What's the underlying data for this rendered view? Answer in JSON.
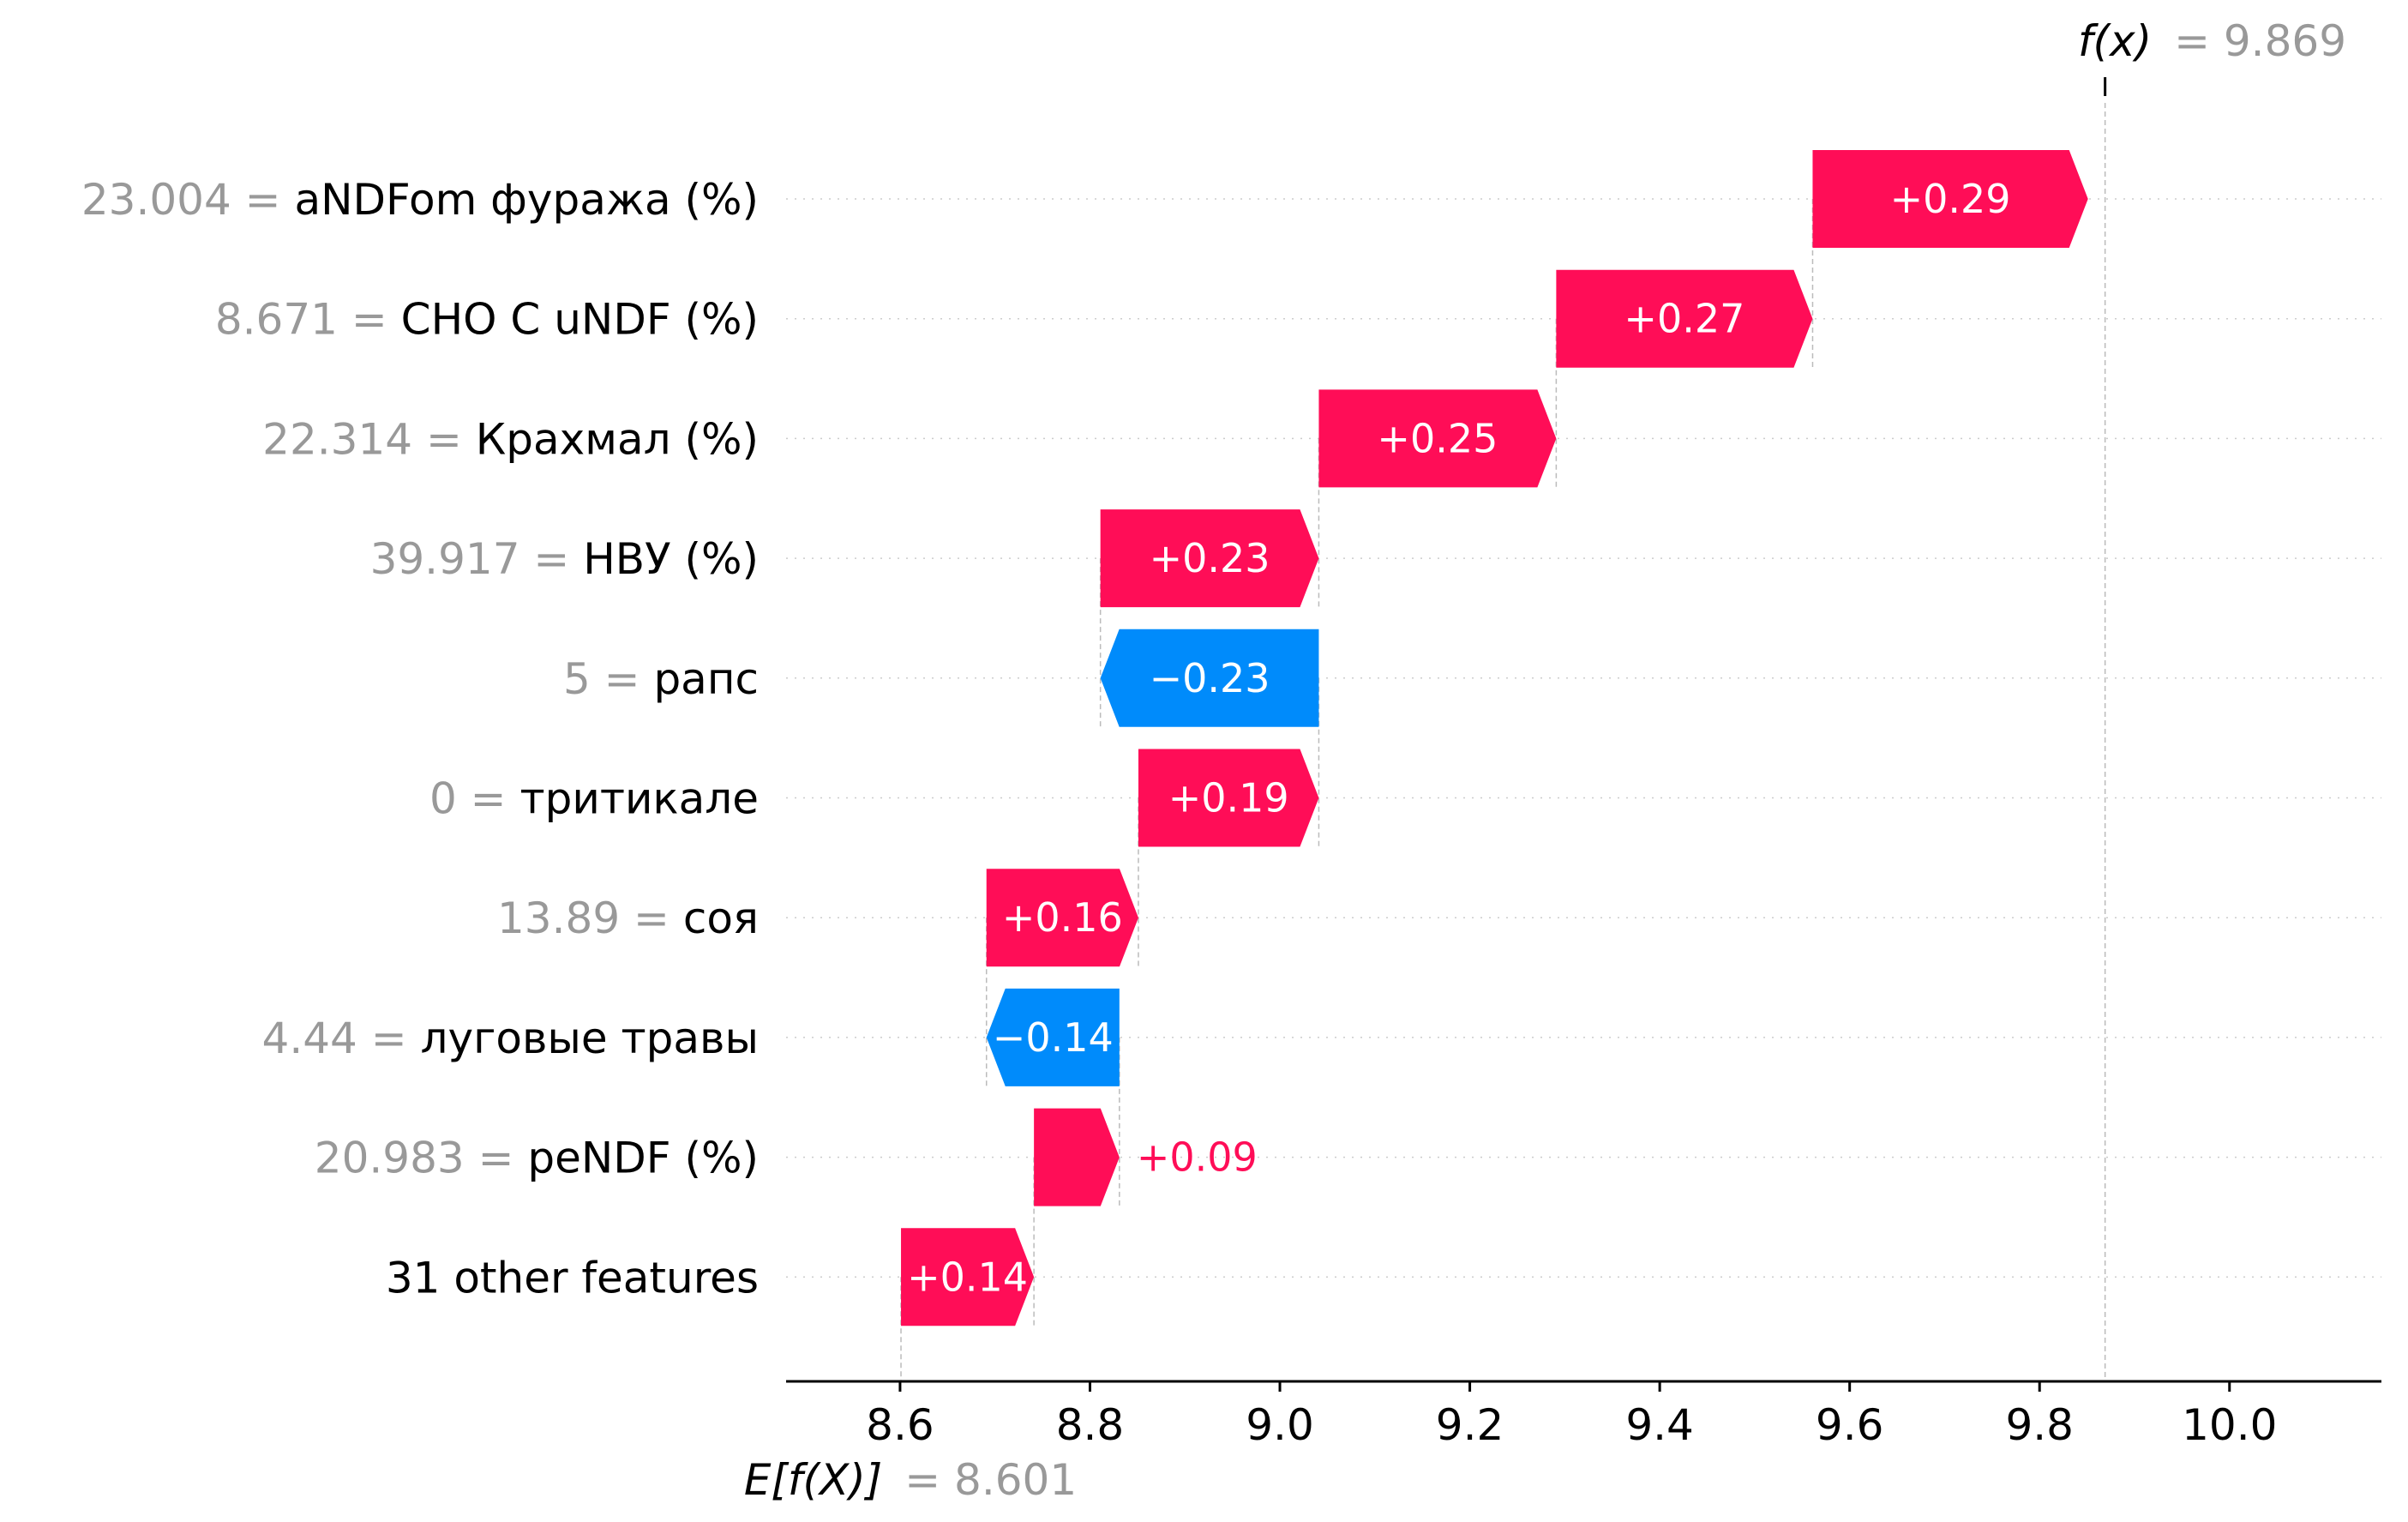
{
  "chart_data": {
    "type": "waterfall",
    "base_value": {
      "label": "E[f(X)]",
      "value": "8.601",
      "x": 8.601
    },
    "output_value": {
      "label": "f(x)",
      "value": "9.869",
      "x": 9.869
    },
    "xlim": [
      8.48,
      10.16
    ],
    "xticks": [
      "8.6",
      "8.8",
      "9.0",
      "9.2",
      "9.4",
      "9.6",
      "9.8",
      "10.0"
    ],
    "colors": {
      "positive": "#ff0d57",
      "negative": "#008bfb"
    },
    "features": [
      {
        "value": "23.004",
        "name": "aNDFom фуража (%)",
        "contribution": 0.29,
        "label": "+0.29"
      },
      {
        "value": "8.671",
        "name": "CHO C uNDF (%)",
        "contribution": 0.27,
        "label": "+0.27"
      },
      {
        "value": "22.314",
        "name": "Крахмал (%)",
        "contribution": 0.25,
        "label": "+0.25"
      },
      {
        "value": "39.917",
        "name": "НВУ (%)",
        "contribution": 0.23,
        "label": "+0.23"
      },
      {
        "value": "5",
        "name": "рапс",
        "contribution": -0.23,
        "label": "−0.23"
      },
      {
        "value": "0",
        "name": "тритикале",
        "contribution": 0.19,
        "label": "+0.19"
      },
      {
        "value": "13.89",
        "name": "соя",
        "contribution": 0.16,
        "label": "+0.16"
      },
      {
        "value": "4.44",
        "name": "луговые травы",
        "contribution": -0.14,
        "label": "−0.14"
      },
      {
        "value": "20.983",
        "name": "peNDF (%)",
        "contribution": 0.09,
        "label": "+0.09"
      },
      {
        "value": "",
        "name": "31 other features",
        "contribution": 0.14,
        "label": "+0.14"
      }
    ]
  }
}
